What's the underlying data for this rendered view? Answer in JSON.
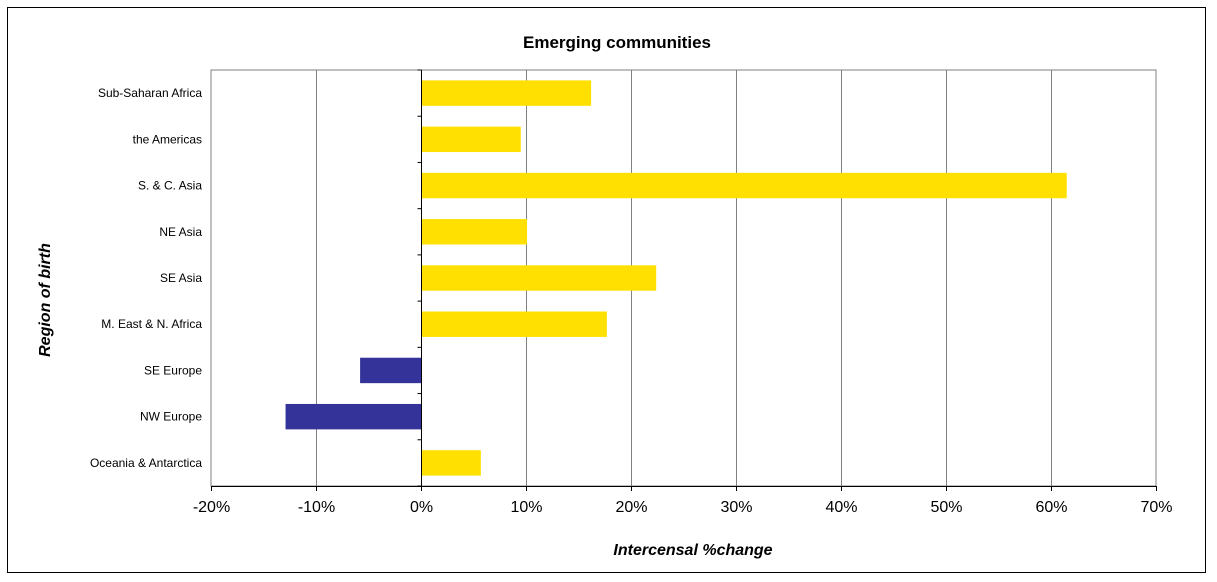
{
  "chart_data": {
    "type": "bar",
    "orientation": "horizontal",
    "title": "Emerging communities",
    "xlabel": "Intercensal %change",
    "ylabel": "Region of birth",
    "categories": [
      "Sub-Saharan Africa",
      "the Americas",
      "S. & C. Asia",
      "NE Asia",
      "SE Asia",
      "M. East & N. Africa",
      "SE Europe",
      "NW Europe",
      "Oceania & Antarctica"
    ],
    "values": [
      16.2,
      9.5,
      61.5,
      10.1,
      22.4,
      17.7,
      -5.8,
      -12.9,
      5.7
    ],
    "xlim": [
      -20,
      70
    ],
    "xticks": [
      -20,
      -10,
      0,
      10,
      20,
      30,
      40,
      50,
      60,
      70
    ],
    "xtick_labels": [
      "-20%",
      "-10%",
      "0%",
      "10%",
      "20%",
      "30%",
      "40%",
      "50%",
      "60%",
      "70%"
    ],
    "grid": "vertical",
    "legend": "none",
    "colors": {
      "positive": "#FFE000",
      "negative": "#333399",
      "grid": "#808080"
    }
  }
}
